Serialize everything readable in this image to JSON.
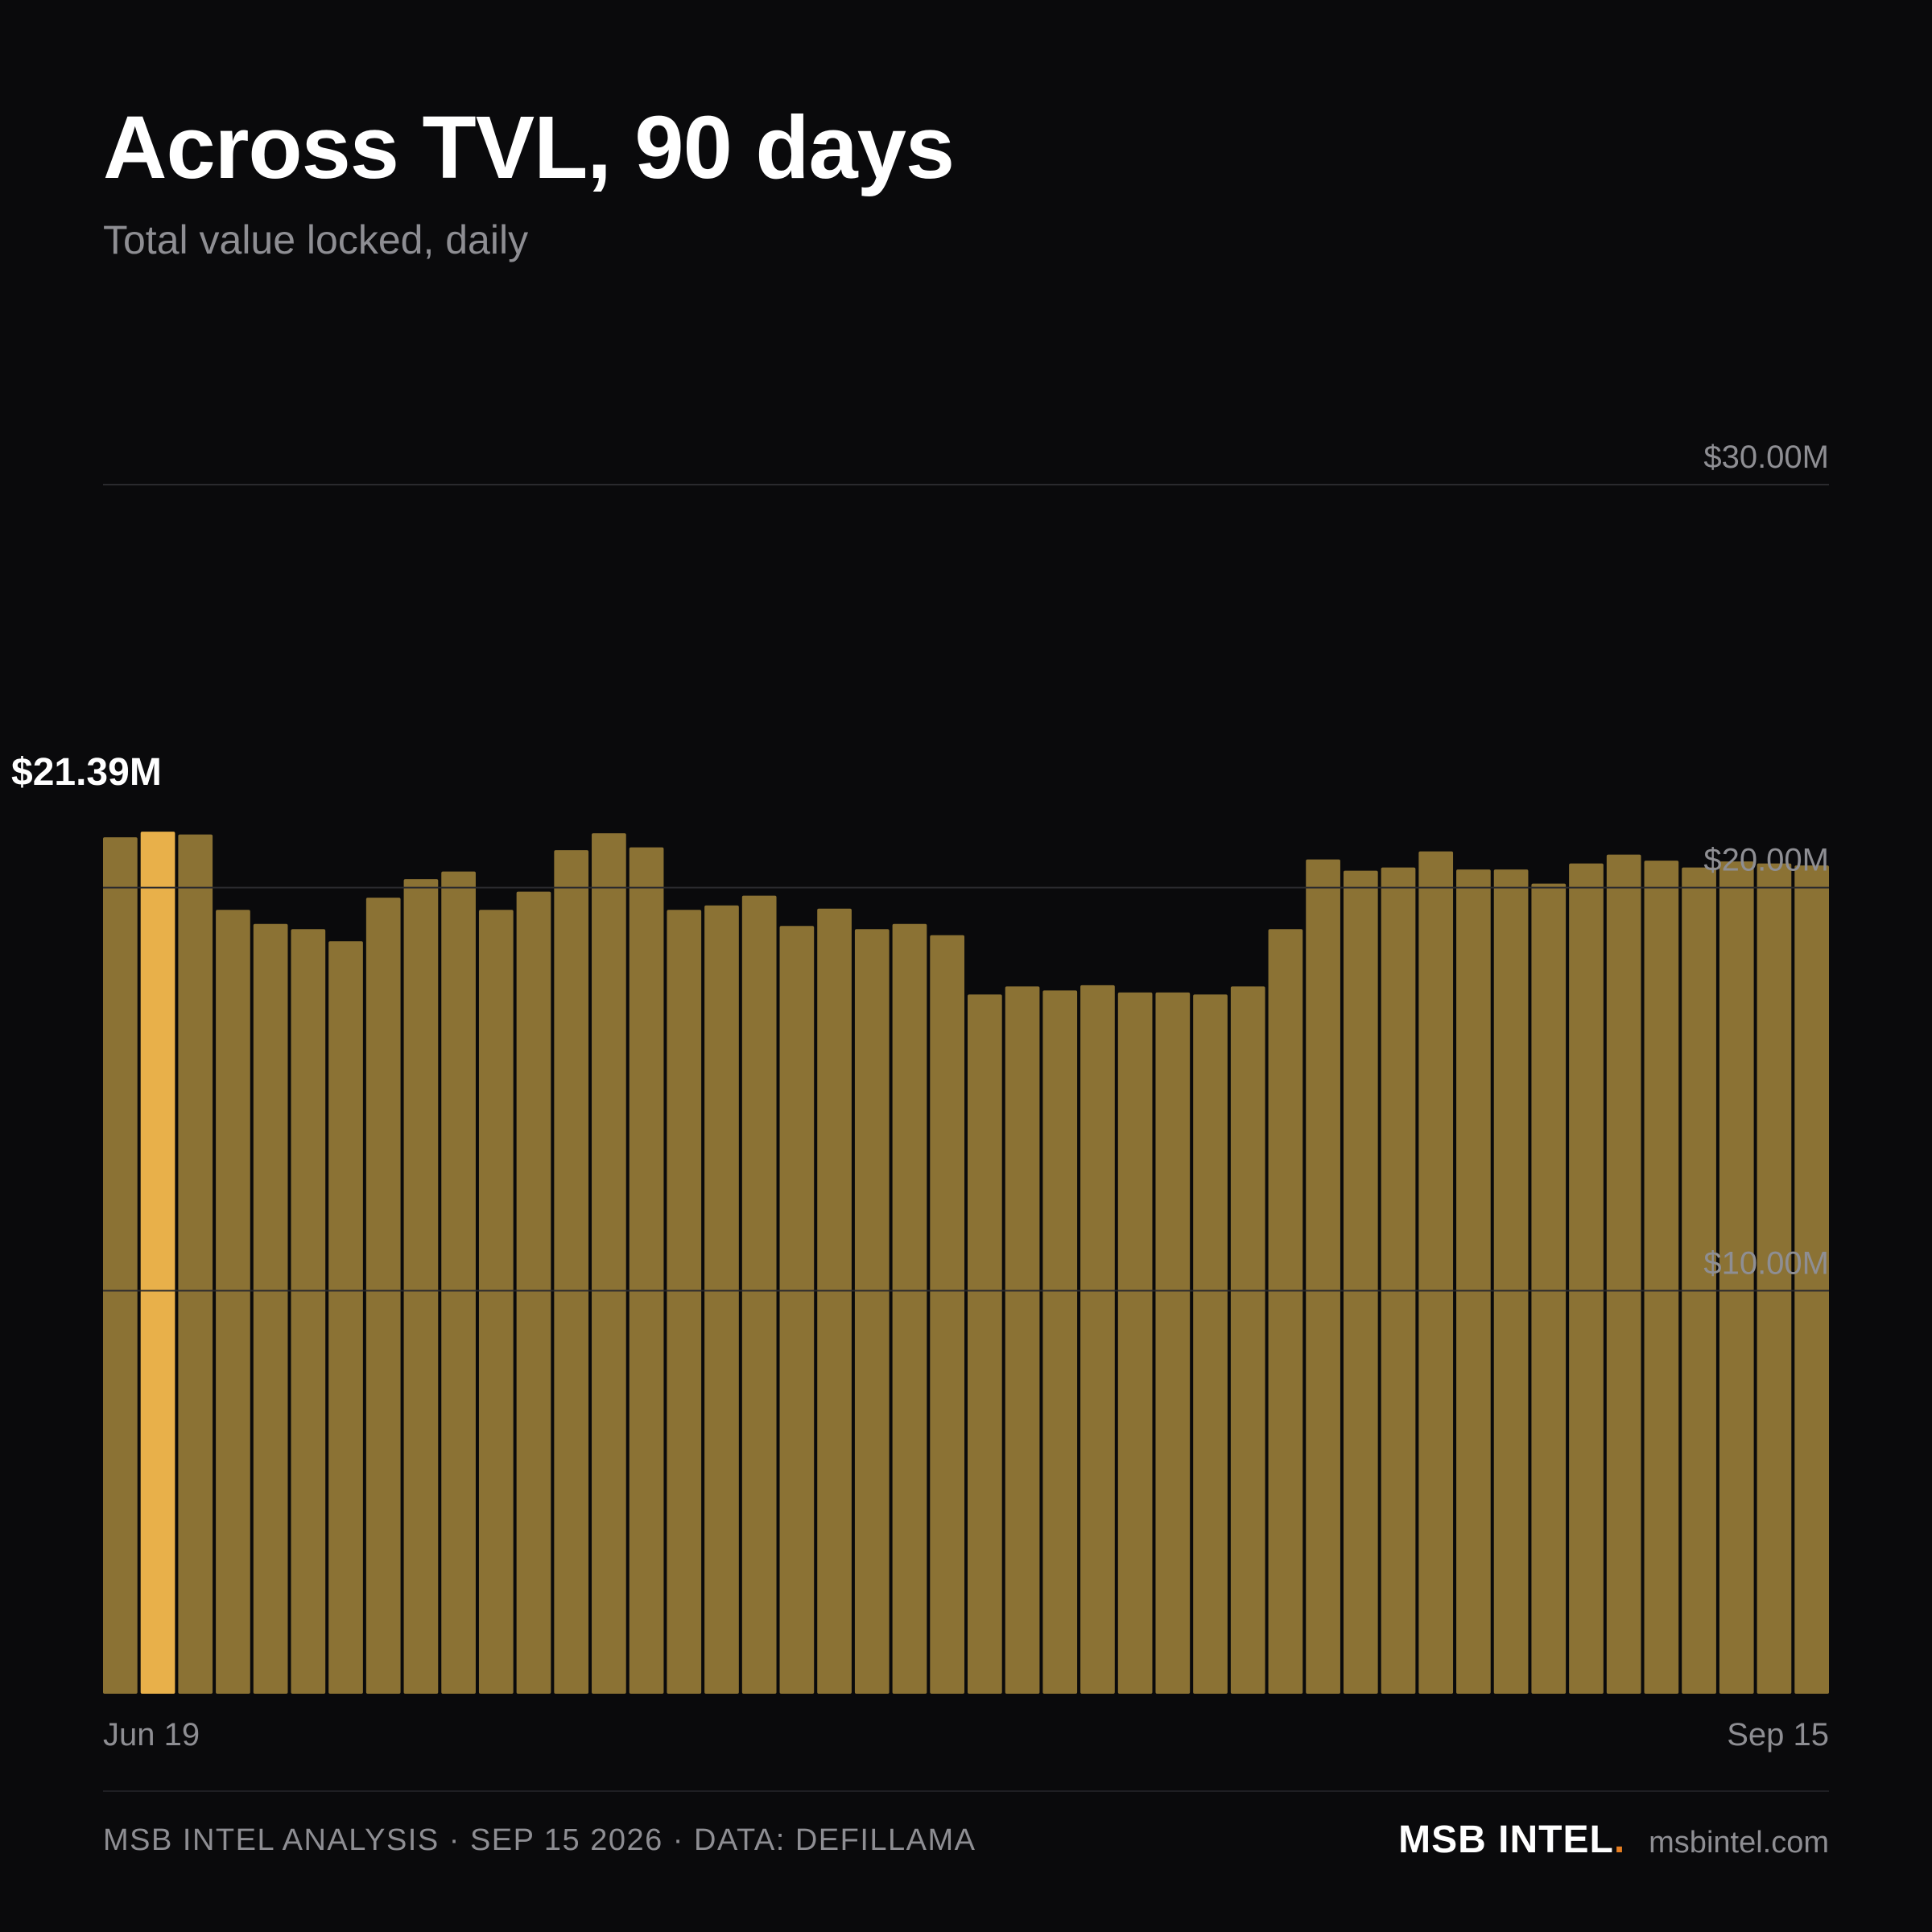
{
  "header": {
    "title": "Across TVL, 90 days",
    "subtitle": "Total value locked, daily"
  },
  "colors": {
    "background": "#0a0a0c",
    "bar": "#8b7234",
    "highlight_bar": "#e8b04a",
    "gridline": "#2a2a2e",
    "text_muted": "#8e8e93",
    "brand_dot": "#e67e22"
  },
  "chart_data": {
    "type": "bar",
    "title": "Across TVL, 90 days",
    "subtitle": "Total value locked, daily",
    "ylim": [
      0,
      30
    ],
    "y_unit": "USD millions",
    "y_ticks": [
      {
        "value": 10,
        "label": "$10.00M"
      },
      {
        "value": 20,
        "label": "$20.00M"
      },
      {
        "value": 30,
        "label": "$30.00M"
      }
    ],
    "x_tick_labels": [
      "Jun 19",
      "Sep 15"
    ],
    "grid": true,
    "highlight": {
      "index": 1,
      "label": "$21.39M"
    },
    "series": [
      {
        "values": [
          21.25,
          21.39,
          21.32,
          19.45,
          19.1,
          18.97,
          18.67,
          19.75,
          20.21,
          20.4,
          19.45,
          19.9,
          20.93,
          21.35,
          21.0,
          19.45,
          19.56,
          19.8,
          19.05,
          19.48,
          18.97,
          19.1,
          18.82,
          17.35,
          17.55,
          17.45,
          17.58,
          17.4,
          17.4,
          17.35,
          17.55,
          18.97,
          20.7,
          20.42,
          20.5,
          20.9,
          20.45,
          20.45,
          20.1,
          20.6,
          20.82,
          20.67,
          20.5,
          20.65,
          20.6,
          20.55
        ]
      }
    ]
  },
  "footer": {
    "left": "MSB INTEL ANALYSIS · SEP 15 2026 · DATA: DEFILLAMA",
    "brand": "MSB INTEL",
    "brand_dot": ".",
    "site": "msbintel.com"
  }
}
